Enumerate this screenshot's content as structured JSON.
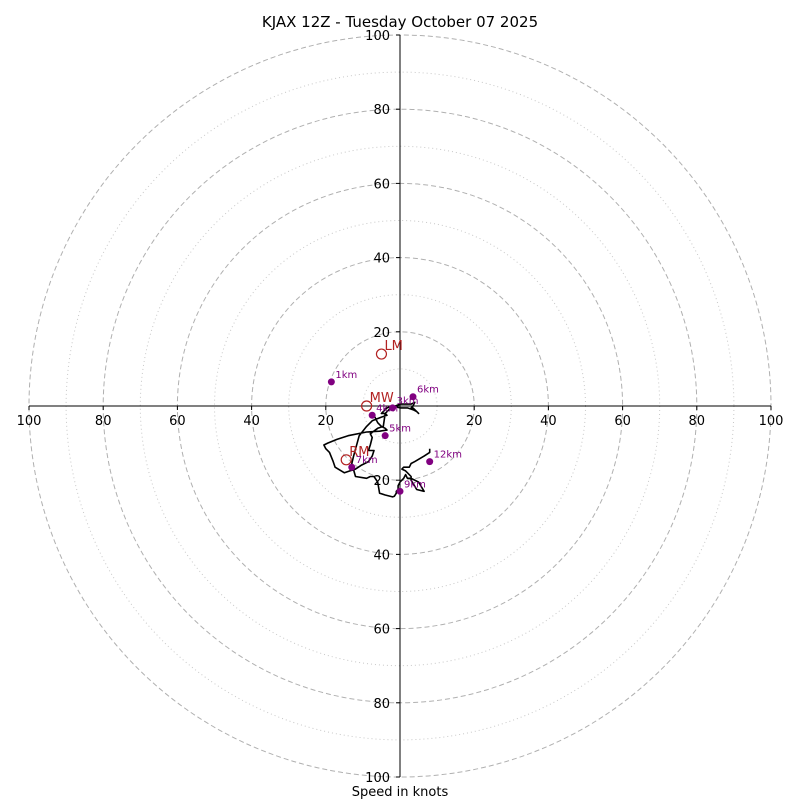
{
  "chart_data": {
    "type": "hodograph",
    "title": "KJAX 12Z - Tuesday October 07 2025",
    "xlabel": "Speed in knots",
    "range": [
      -100,
      100
    ],
    "ring_major": [
      20,
      40,
      60,
      80,
      100
    ],
    "ring_minor": [
      10,
      30,
      50,
      70,
      90
    ],
    "x_ticks": [
      {
        "v": -100,
        "label": "100"
      },
      {
        "v": -80,
        "label": "80"
      },
      {
        "v": -60,
        "label": "60"
      },
      {
        "v": -40,
        "label": "40"
      },
      {
        "v": -20,
        "label": "20"
      },
      {
        "v": 20,
        "label": "20"
      },
      {
        "v": 40,
        "label": "40"
      },
      {
        "v": 60,
        "label": "60"
      },
      {
        "v": 80,
        "label": "80"
      },
      {
        "v": 100,
        "label": "100"
      }
    ],
    "y_ticks": [
      {
        "v": 100,
        "label": "100"
      },
      {
        "v": 80,
        "label": "80"
      },
      {
        "v": 60,
        "label": "60"
      },
      {
        "v": 40,
        "label": "40"
      },
      {
        "v": 20,
        "label": "20"
      },
      {
        "v": -20,
        "label": "20"
      },
      {
        "v": -40,
        "label": "40"
      },
      {
        "v": -60,
        "label": "60"
      },
      {
        "v": -80,
        "label": "80"
      },
      {
        "v": -100,
        "label": "100"
      }
    ],
    "trace_u": [
      -7.0,
      -6.0,
      -5.0,
      -4.0,
      -3.5,
      -5.5,
      -9.0,
      -14.0,
      -17.0,
      -19.5,
      -20.5,
      -20.0,
      -19.0,
      -18.0,
      -17.5,
      -15.0,
      -13.5,
      -12.0,
      -10.5,
      -8.5,
      -7.5,
      -7.0,
      -8.5,
      -8.0,
      -7.5,
      -8.0,
      -6.0,
      -4.5,
      -4.0,
      -2.5,
      0.0,
      2.0,
      3.0,
      4.0,
      3.5,
      3.0,
      3.5,
      4.0,
      5.0,
      4.5,
      3.5,
      2.0,
      0.0,
      -2.0,
      -3.5,
      -4.5,
      -5.0,
      -4.0,
      -3.5,
      -5.0,
      -7.5,
      -9.0,
      -11.0,
      -12.5,
      -13.0,
      -12.0,
      -9.0,
      -8.0,
      -7.0,
      -6.0,
      -5.5,
      -4.0,
      -2.0,
      -1.5,
      -1.0,
      -1.0,
      -0.5,
      -0.5,
      0.0,
      1.0,
      1.5,
      2.0,
      3.0,
      5.0,
      6.5,
      4.5,
      3.0,
      3.0,
      1.5,
      0.5,
      1.0,
      2.5,
      3.0,
      4.0,
      6.5,
      8.0,
      8.0
    ],
    "trace_v": [
      -2.5,
      -4.5,
      -5.5,
      -6.0,
      -6.5,
      -6.8,
      -7.0,
      -8.0,
      -9.0,
      -10.0,
      -10.5,
      -11.5,
      -12.5,
      -15.0,
      -16.5,
      -18.0,
      -17.5,
      -17.0,
      -16.0,
      -15.0,
      -13.5,
      -12.0,
      -12.0,
      -10.5,
      -8.5,
      -7.5,
      -6.0,
      -5.5,
      -2.0,
      -0.5,
      0.5,
      0.5,
      0.5,
      1.0,
      0.0,
      -0.5,
      -0.5,
      -1.0,
      -2.0,
      -1.5,
      -1.0,
      -0.5,
      -0.5,
      0.0,
      -0.5,
      -1.5,
      -2.0,
      -2.0,
      -2.5,
      -3.0,
      -4.0,
      -5.5,
      -8.0,
      -13.5,
      -15.5,
      -19.0,
      -19.5,
      -19.0,
      -19.0,
      -20.5,
      -23.5,
      -24.0,
      -24.5,
      -24.3,
      -23.5,
      -23.0,
      -22.5,
      -21.5,
      -20.5,
      -19.5,
      -18.5,
      -19.5,
      -19.5,
      -20.5,
      -23.0,
      -22.5,
      -20.0,
      -19.0,
      -17.5,
      -17.0,
      -16.5,
      -16.5,
      -15.5,
      -15.0,
      -13.5,
      -12.5,
      -11.5
    ],
    "height_points": [
      {
        "label": "1km",
        "u": -18.5,
        "v": 6.5
      },
      {
        "label": "3km",
        "u": -2.0,
        "v": -0.5
      },
      {
        "label": "4km",
        "u": -7.5,
        "v": -2.5
      },
      {
        "label": "5km",
        "u": -4.0,
        "v": -8.0
      },
      {
        "label": "6km",
        "u": 3.5,
        "v": 2.5
      },
      {
        "label": "7km",
        "u": -13.0,
        "v": -16.5
      },
      {
        "label": "9km",
        "u": 0.0,
        "v": -23.0
      },
      {
        "label": "12km",
        "u": 8.0,
        "v": -15.0
      }
    ],
    "motion_markers": [
      {
        "label": "LM",
        "u": -5.0,
        "v": 14.0
      },
      {
        "label": "MW",
        "u": -9.0,
        "v": 0.0
      },
      {
        "label": "RM",
        "u": -14.5,
        "v": -14.5
      }
    ],
    "colors": {
      "trace": "#000000",
      "height_marker": "#800080",
      "motion_marker": "#b22222",
      "ring_major": "#b0b0b0",
      "ring_minor": "#c8c8c8"
    }
  }
}
